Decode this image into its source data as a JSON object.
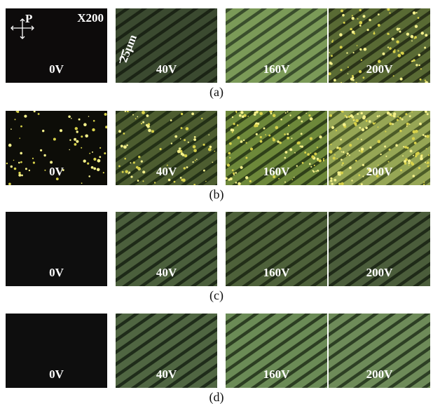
{
  "figure": {
    "polarizer_label": "P",
    "magnification": "X200",
    "scale_bar": "25μm",
    "rows": [
      {
        "caption": "(a)",
        "panels": [
          {
            "label": "0V"
          },
          {
            "label": "40V"
          },
          {
            "label": "160V"
          },
          {
            "label": "200V"
          }
        ]
      },
      {
        "caption": "(b)",
        "panels": [
          {
            "label": "0V"
          },
          {
            "label": "40V"
          },
          {
            "label": "160V"
          },
          {
            "label": "200V"
          }
        ]
      },
      {
        "caption": "(c)",
        "panels": [
          {
            "label": "0V"
          },
          {
            "label": "40V"
          },
          {
            "label": "160V"
          },
          {
            "label": "200V"
          }
        ]
      },
      {
        "caption": "(d)",
        "panels": [
          {
            "label": "0V"
          },
          {
            "label": "40V"
          },
          {
            "label": "160V"
          },
          {
            "label": "200V"
          }
        ]
      }
    ]
  }
}
